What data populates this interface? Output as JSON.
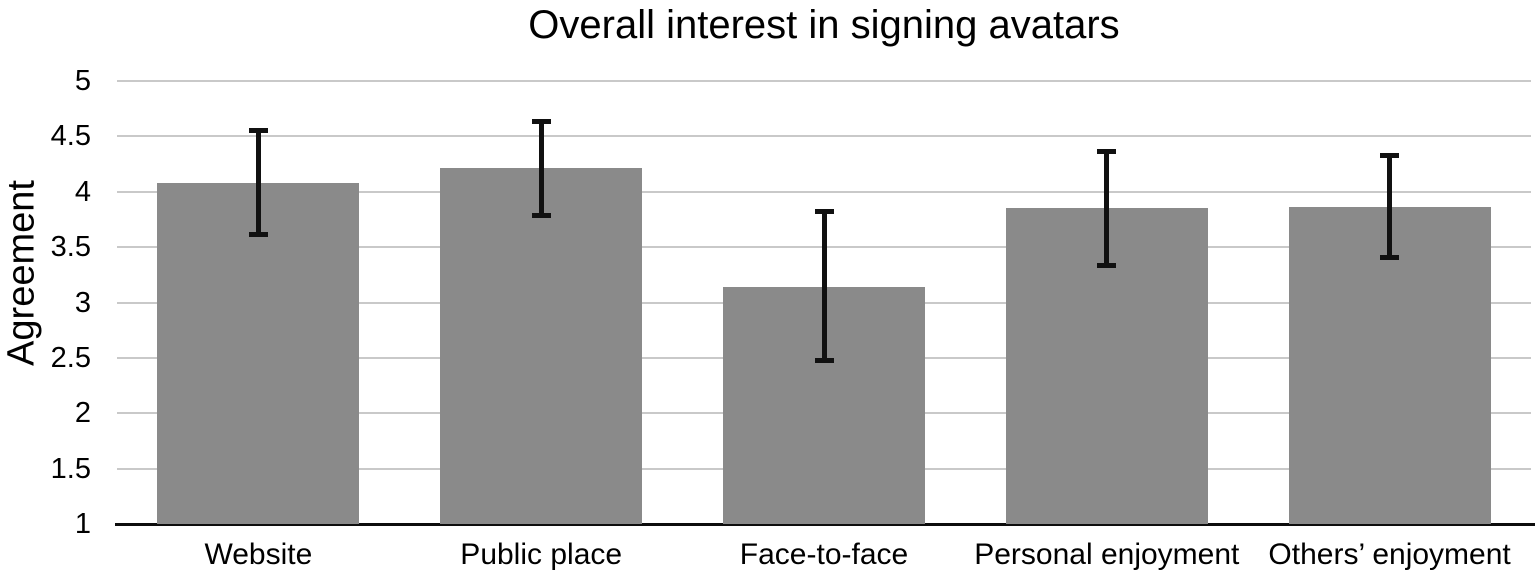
{
  "chart_data": {
    "type": "bar",
    "title": "Overall interest in signing avatars",
    "ylabel": "Agreement",
    "xlabel": "",
    "categories": [
      "Website",
      "Public place",
      "Face-to-face",
      "Personal enjoyment",
      "Others’ enjoyment"
    ],
    "values": [
      4.08,
      4.21,
      3.14,
      3.85,
      3.86
    ],
    "error_low": [
      3.61,
      3.78,
      2.47,
      3.33,
      3.4
    ],
    "error_high": [
      4.56,
      4.64,
      3.83,
      4.37,
      4.33
    ],
    "ylim": [
      1,
      5
    ],
    "ytick_step": 0.5,
    "ytick_labels": [
      "1",
      "1.5",
      "2",
      "2.5",
      "3",
      "3.5",
      "4",
      "4.5",
      "5"
    ],
    "grid": true,
    "legend": "none",
    "colors": {
      "bar": "#8a8a8a",
      "gridline": "#c9c9c9",
      "axis": "#0d0d0d",
      "error_bar": "#111111",
      "text": "#000000",
      "background": "#ffffff"
    }
  }
}
